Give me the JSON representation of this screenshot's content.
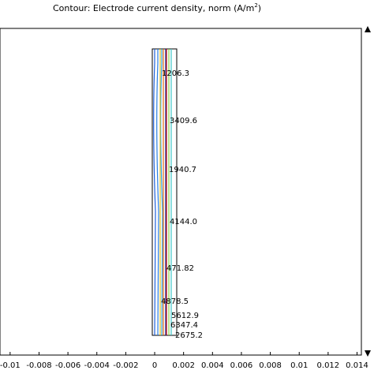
{
  "chart_data": {
    "type": "contour",
    "title": "Contour: Electrode current density, norm (A/m",
    "title_sup": "2",
    "title_end": ")",
    "xlim": [
      -0.0107,
      0.0143
    ],
    "xticks": [
      -0.01,
      -0.008,
      -0.006,
      -0.004,
      -0.002,
      0,
      0.002,
      0.004,
      0.006,
      0.008,
      0.01,
      0.012,
      0.014
    ],
    "values": [
      1206.3,
      3409.6,
      1940.7,
      4144.0,
      471.82,
      4878.5,
      5612.9,
      6347.4,
      2675.2
    ],
    "value_labels": [
      "1206.3",
      "3409.6",
      "1940.7",
      "4144.0",
      "471.82",
      "4878.5",
      "5612.9",
      "6347.4",
      "2675.2"
    ],
    "colors": [
      "#1e5fd8",
      "#2fa0e0",
      "#2a7fe0",
      "#8fd04a",
      "#0a1fa0",
      "#e0c020",
      "#e06a10",
      "#c01010",
      "#40c8c8"
    ]
  }
}
